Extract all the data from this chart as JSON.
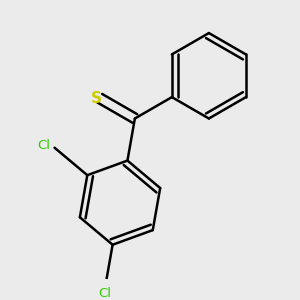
{
  "background_color": "#ebebeb",
  "bond_color": "#000000",
  "sulfur_color": "#cccc00",
  "chlorine_color": "#33cc00",
  "chlorine_label": "Cl",
  "sulfur_label": "S",
  "line_width": 1.8,
  "figsize": [
    3.0,
    3.0
  ],
  "dpi": 100
}
